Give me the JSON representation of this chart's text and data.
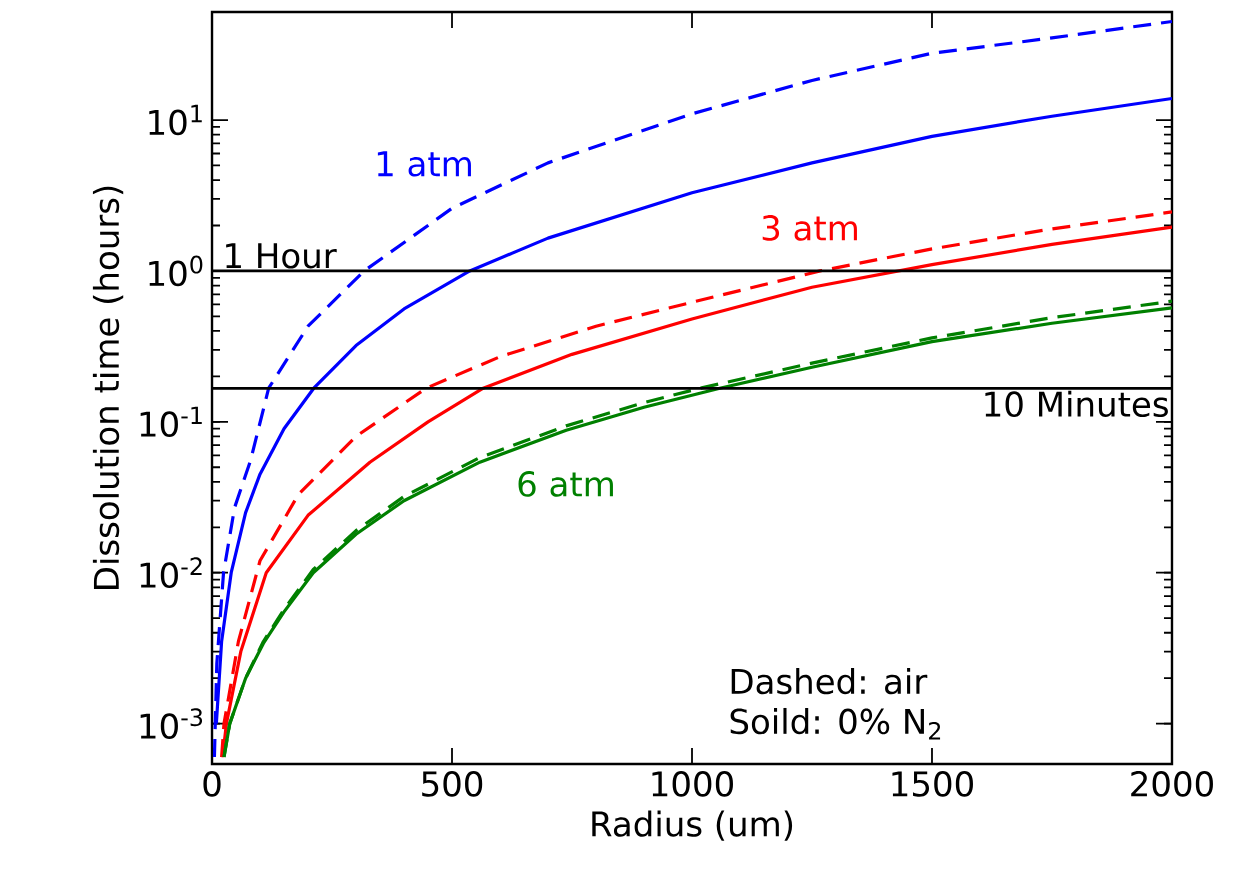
{
  "chart_data": {
    "type": "line",
    "xlabel": "Radius (um)",
    "ylabel": "Dissolution time (hours)",
    "log": "y",
    "xlim": [
      0,
      2000
    ],
    "xticks": [
      0,
      500,
      1000,
      1500,
      2000
    ],
    "ylim": [
      0.00054,
      52
    ],
    "yticks": [
      {
        "value": 0.001,
        "label": "10$^{-3}$"
      },
      {
        "value": 0.01,
        "label": "10$^{-2}$"
      },
      {
        "value": 0.1,
        "label": "10$^{-1}$"
      },
      {
        "value": 1,
        "label": "10$^{0}$"
      },
      {
        "value": 10,
        "label": "10$^{1}$"
      }
    ],
    "series": [
      {
        "color": "#0000ff",
        "line_style": "dashed",
        "x": [
          5,
          10,
          24,
          47,
          80,
          118,
          200,
          317,
          500,
          700,
          1000,
          1250,
          1500,
          1750,
          2000
        ],
        "values": [
          0.0006,
          0.0025,
          0.01,
          0.027,
          0.055,
          0.167,
          0.43,
          1,
          2.6,
          5.2,
          11,
          18.3,
          27.7,
          35,
          45
        ]
      },
      {
        "color": "#0000ff",
        "line_style": "solid",
        "x": [
          9,
          20,
          40,
          70,
          100,
          150,
          212,
          300,
          400,
          537,
          700,
          1000,
          1250,
          1500,
          1750,
          2000
        ],
        "values": [
          0.001,
          0.0035,
          0.01,
          0.025,
          0.045,
          0.09,
          0.167,
          0.32,
          0.56,
          1,
          1.65,
          3.3,
          5.2,
          7.8,
          10.6,
          13.9
        ]
      },
      {
        "color": "#ff0000",
        "line_style": "dashed",
        "x": [
          20,
          25,
          55,
          100,
          180,
          300,
          446,
          600,
          800,
          1000,
          1267,
          1500,
          1750,
          2000
        ],
        "values": [
          0.0006,
          0.001,
          0.0035,
          0.012,
          0.033,
          0.08,
          0.167,
          0.27,
          0.43,
          0.62,
          1,
          1.4,
          1.9,
          2.46
        ]
      },
      {
        "color": "#ff0000",
        "line_style": "solid",
        "x": [
          22,
          30,
          60,
          113,
          200,
          329,
          450,
          565,
          750,
          1000,
          1250,
          1500,
          1750,
          2000
        ],
        "values": [
          0.0006,
          0.001,
          0.003,
          0.01,
          0.024,
          0.054,
          0.1,
          0.167,
          0.28,
          0.48,
          0.78,
          1.1,
          1.5,
          1.95
        ]
      },
      {
        "color": "#008000",
        "line_style": "dashed",
        "x": [
          25,
          37,
          70,
          107,
          150,
          211,
          300,
          400,
          558,
          738,
          900,
          1017,
          1250,
          1500,
          1750,
          2000
        ],
        "values": [
          0.0006,
          0.001,
          0.002,
          0.0035,
          0.0057,
          0.0105,
          0.019,
          0.032,
          0.058,
          0.094,
          0.134,
          0.167,
          0.245,
          0.36,
          0.49,
          0.63
        ]
      },
      {
        "color": "#008000",
        "line_style": "solid",
        "x": [
          25,
          37,
          70,
          107,
          150,
          211,
          300,
          400,
          558,
          738,
          900,
          1058,
          1250,
          1500,
          1750,
          2000
        ],
        "values": [
          0.0006,
          0.001,
          0.002,
          0.0034,
          0.0055,
          0.01,
          0.018,
          0.03,
          0.054,
          0.088,
          0.125,
          0.167,
          0.23,
          0.34,
          0.45,
          0.57
        ]
      }
    ],
    "ref_lines": [
      {
        "axis": "y",
        "value": 1,
        "label": "1 Hour",
        "color": "#000000"
      },
      {
        "axis": "y",
        "value": 0.1667,
        "label": "10 Minutes",
        "color": "#000000"
      }
    ],
    "annotations": [
      "1 atm",
      "3 atm",
      "6 atm",
      "Dashed: air",
      "Soild: 0% N$_{2}$"
    ]
  }
}
